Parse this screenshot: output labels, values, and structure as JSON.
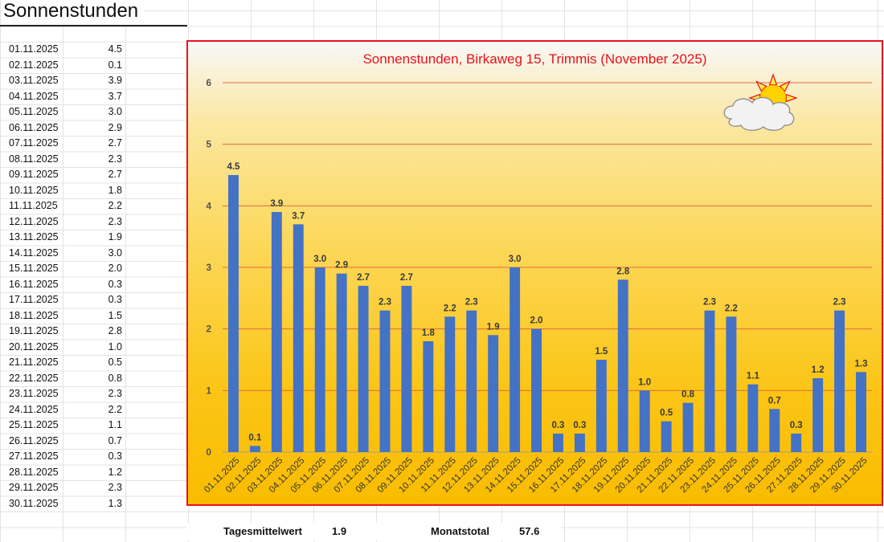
{
  "sheet": {
    "title": "Sonnenstunden"
  },
  "table": {
    "rows": [
      {
        "date": "01.11.2025",
        "value": "4.5"
      },
      {
        "date": "02.11.2025",
        "value": "0.1"
      },
      {
        "date": "03.11.2025",
        "value": "3.9"
      },
      {
        "date": "04.11.2025",
        "value": "3.7"
      },
      {
        "date": "05.11.2025",
        "value": "3.0"
      },
      {
        "date": "06.11.2025",
        "value": "2.9"
      },
      {
        "date": "07.11.2025",
        "value": "2.7"
      },
      {
        "date": "08.11.2025",
        "value": "2.3"
      },
      {
        "date": "09.11.2025",
        "value": "2.7"
      },
      {
        "date": "10.11.2025",
        "value": "1.8"
      },
      {
        "date": "11.11.2025",
        "value": "2.2"
      },
      {
        "date": "12.11.2025",
        "value": "2.3"
      },
      {
        "date": "13.11.2025",
        "value": "1.9"
      },
      {
        "date": "14.11.2025",
        "value": "3.0"
      },
      {
        "date": "15.11.2025",
        "value": "2.0"
      },
      {
        "date": "16.11.2025",
        "value": "0.3"
      },
      {
        "date": "17.11.2025",
        "value": "0.3"
      },
      {
        "date": "18.11.2025",
        "value": "1.5"
      },
      {
        "date": "19.11.2025",
        "value": "2.8"
      },
      {
        "date": "20.11.2025",
        "value": "1.0"
      },
      {
        "date": "21.11.2025",
        "value": "0.5"
      },
      {
        "date": "22.11.2025",
        "value": "0.8"
      },
      {
        "date": "23.11.2025",
        "value": "2.3"
      },
      {
        "date": "24.11.2025",
        "value": "2.2"
      },
      {
        "date": "25.11.2025",
        "value": "1.1"
      },
      {
        "date": "26.11.2025",
        "value": "0.7"
      },
      {
        "date": "27.11.2025",
        "value": "0.3"
      },
      {
        "date": "28.11.2025",
        "value": "1.2"
      },
      {
        "date": "29.11.2025",
        "value": "2.3"
      },
      {
        "date": "30.11.2025",
        "value": "1.3"
      }
    ]
  },
  "summary": {
    "mean_label": "Tagesmittelwert",
    "mean_value": "1.9",
    "total_label": "Monatstotal",
    "total_value": "57.6"
  },
  "chart_data": {
    "type": "bar",
    "title": "Sonnenstunden, Birkaweg 15, Trimmis (November 2025)",
    "categories": [
      "01.11.2025",
      "02.11.2025",
      "03.11.2025",
      "04.11.2025",
      "05.11.2025",
      "06.11.2025",
      "07.11.2025",
      "08.11.2025",
      "09.11.2025",
      "10.11.2025",
      "11.11.2025",
      "12.11.2025",
      "13.11.2025",
      "14.11.2025",
      "15.11.2025",
      "16.11.2025",
      "17.11.2025",
      "18.11.2025",
      "19.11.2025",
      "20.11.2025",
      "21.11.2025",
      "22.11.2025",
      "23.11.2025",
      "24.11.2025",
      "25.11.2025",
      "26.11.2025",
      "27.11.2025",
      "28.11.2025",
      "29.11.2025",
      "30.11.2025"
    ],
    "values": [
      4.5,
      0.1,
      3.9,
      3.7,
      3.0,
      2.9,
      2.7,
      2.3,
      2.7,
      1.8,
      2.2,
      2.3,
      1.9,
      3.0,
      2.0,
      0.3,
      0.3,
      1.5,
      2.8,
      1.0,
      0.5,
      0.8,
      2.3,
      2.2,
      1.1,
      0.7,
      0.3,
      1.2,
      2.3,
      1.3
    ],
    "ylim": [
      0,
      6
    ],
    "yticks": [
      0,
      1,
      2,
      3,
      4,
      5,
      6
    ],
    "xlabel": "",
    "ylabel": "",
    "bar_color": "#4472c4",
    "gridline_color": "#e06a3b",
    "title_color": "#e8121d",
    "frame_color": "#e8121d",
    "decoration": "sun-behind-cloud-icon"
  }
}
